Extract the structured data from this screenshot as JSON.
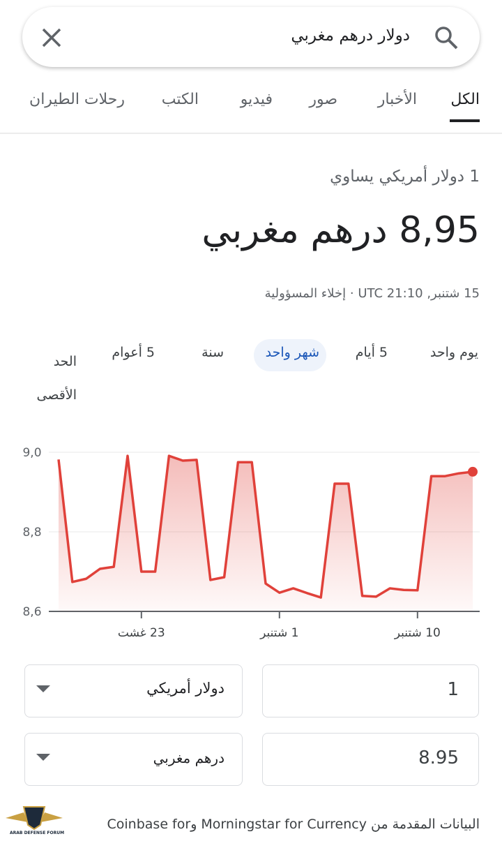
{
  "search": {
    "query": "دولار درهم مغربي"
  },
  "tabs": [
    "الكل",
    "الأخبار",
    "صور",
    "فيديو",
    "الكتب",
    "رحلات الطيران"
  ],
  "result": {
    "intro": "1 دولار أمريكي يساوي",
    "value": "8,95 درهم مغربي",
    "time": "15 شتنبر, UTC 21:10",
    "separator": "·",
    "disclaimer": "إخلاء المسؤولية"
  },
  "ranges": [
    "يوم واحد",
    "5 أيام",
    "شهر واحد",
    "سنة",
    "5 أعوام",
    "الحد الأقصى"
  ],
  "chart_data": {
    "type": "line",
    "color": "#e0413a",
    "categories": [
      null,
      null,
      null,
      null,
      null,
      null,
      "23 غشت",
      null,
      null,
      null,
      null,
      null,
      null,
      null,
      null,
      null,
      "1 شتنبر",
      null,
      null,
      null,
      null,
      null,
      null,
      null,
      null,
      null,
      "10 شتنبر",
      null,
      null,
      null,
      null
    ],
    "values": [
      8.982,
      8.674,
      8.682,
      8.707,
      8.712,
      8.991,
      8.7,
      8.7,
      8.991,
      8.979,
      8.981,
      8.679,
      8.686,
      8.975,
      8.975,
      8.67,
      8.647,
      8.658,
      8.646,
      8.635,
      8.921,
      8.921,
      8.639,
      8.637,
      8.658,
      8.654,
      8.653,
      8.94,
      8.94,
      8.947,
      8.951
    ],
    "ylim": [
      8.6,
      9.0
    ],
    "yticks": [
      {
        "value": 8.6,
        "label": "8,6"
      },
      {
        "value": 8.8,
        "label": "8,8"
      },
      {
        "value": 9.0,
        "label": "9,0"
      }
    ],
    "grid": true
  },
  "converter": {
    "from_amount": "1",
    "from_currency": "دولار أمريكي",
    "to_amount": "8.95",
    "to_currency": "درهم مغربي"
  },
  "footer": {
    "text": "البيانات المقدمة من Morningstar for Currency وCoinbase for",
    "watermark": "ARAB DEFENSE FORUM"
  }
}
